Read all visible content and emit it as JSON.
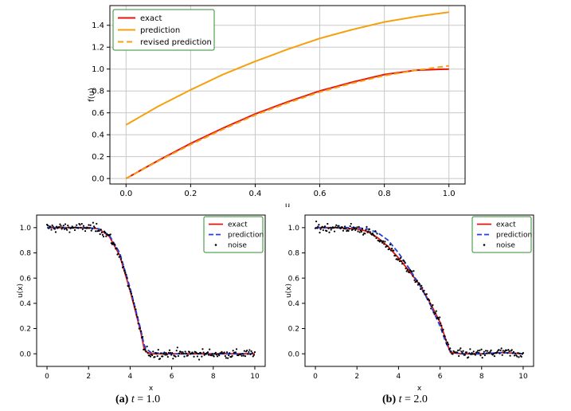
{
  "chart_data": [
    {
      "type": "line",
      "title": "",
      "xlabel": "u",
      "ylabel": "f(u)",
      "xlim": [
        -0.05,
        1.05
      ],
      "ylim": [
        -0.05,
        1.58
      ],
      "xticks": [
        "0.0",
        "0.2",
        "0.4",
        "0.6",
        "0.8",
        "1.0"
      ],
      "yticks": [
        "0.0",
        "0.2",
        "0.4",
        "0.6",
        "0.8",
        "1.0",
        "1.2",
        "1.4"
      ],
      "grid": true,
      "legend_position": "top-left",
      "x": [
        0.0,
        0.1,
        0.2,
        0.3,
        0.4,
        0.5,
        0.6,
        0.7,
        0.8,
        0.9,
        1.0
      ],
      "series": [
        {
          "name": "exact",
          "color": "#e8140e",
          "style": "solid",
          "values": [
            0.0,
            0.165,
            0.32,
            0.46,
            0.59,
            0.7,
            0.8,
            0.88,
            0.95,
            0.99,
            1.0
          ]
        },
        {
          "name": "prediction",
          "color": "#f5a00f",
          "style": "solid",
          "values": [
            0.49,
            0.66,
            0.81,
            0.95,
            1.07,
            1.18,
            1.28,
            1.36,
            1.43,
            1.48,
            1.52
          ]
        },
        {
          "name": "revised prediction",
          "color": "#f5a00f",
          "style": "dashed",
          "values": [
            0.0,
            0.16,
            0.31,
            0.45,
            0.58,
            0.69,
            0.79,
            0.87,
            0.94,
            0.99,
            1.03
          ]
        }
      ]
    },
    {
      "type": "line",
      "title": "",
      "xlabel": "x",
      "ylabel": "u(x)",
      "xlim": [
        -0.5,
        10.5
      ],
      "ylim": [
        -0.1,
        1.1
      ],
      "xticks": [
        "0",
        "2",
        "4",
        "6",
        "8",
        "10"
      ],
      "yticks": [
        "0.0",
        "0.2",
        "0.4",
        "0.6",
        "0.8",
        "1.0"
      ],
      "grid": false,
      "legend_position": "top-right",
      "x": [
        0,
        1,
        2,
        2.5,
        3,
        3.5,
        4,
        4.5,
        4.7,
        5,
        6,
        7,
        8,
        9,
        10
      ],
      "series": [
        {
          "name": "exact",
          "color": "#e8140e",
          "style": "solid",
          "values": [
            1.0,
            1.0,
            1.0,
            0.99,
            0.93,
            0.78,
            0.5,
            0.18,
            0.02,
            0.0,
            0.0,
            0.0,
            0.0,
            0.0,
            0.0
          ]
        },
        {
          "name": "prediction",
          "color": "#1f3fe0",
          "style": "dashed",
          "values": [
            1.0,
            1.0,
            1.0,
            0.99,
            0.94,
            0.8,
            0.52,
            0.2,
            0.05,
            0.01,
            0.0,
            0.0,
            0.0,
            0.0,
            0.0
          ]
        },
        {
          "name": "noise",
          "color": "#000000",
          "style": "markers",
          "values": [
            1.0,
            1.0,
            1.0,
            0.99,
            0.93,
            0.78,
            0.5,
            0.18,
            0.02,
            0.0,
            0.0,
            0.0,
            0.0,
            0.0,
            0.0
          ]
        }
      ]
    },
    {
      "type": "line",
      "title": "",
      "xlabel": "x",
      "ylabel": "u(x)",
      "xlim": [
        -0.5,
        10.5
      ],
      "ylim": [
        -0.1,
        1.1
      ],
      "xticks": [
        "0",
        "2",
        "4",
        "6",
        "8",
        "10"
      ],
      "yticks": [
        "0.0",
        "0.2",
        "0.4",
        "0.6",
        "0.8",
        "1.0"
      ],
      "grid": false,
      "legend_position": "top-right",
      "x": [
        0,
        1,
        2,
        2.5,
        3,
        3.5,
        4,
        4.5,
        5,
        5.5,
        6,
        6.3,
        6.5,
        7,
        8,
        9,
        10
      ],
      "series": [
        {
          "name": "exact",
          "color": "#e8140e",
          "style": "solid",
          "values": [
            1.0,
            1.0,
            0.99,
            0.97,
            0.92,
            0.85,
            0.76,
            0.66,
            0.55,
            0.41,
            0.25,
            0.1,
            0.01,
            0.0,
            0.0,
            0.01,
            0.0
          ]
        },
        {
          "name": "prediction",
          "color": "#1f3fe0",
          "style": "dashed",
          "values": [
            1.0,
            1.0,
            1.0,
            0.99,
            0.96,
            0.9,
            0.8,
            0.68,
            0.55,
            0.4,
            0.22,
            0.08,
            0.02,
            0.0,
            0.0,
            0.01,
            0.0
          ]
        },
        {
          "name": "noise",
          "color": "#000000",
          "style": "markers",
          "values": [
            1.0,
            1.0,
            0.99,
            0.97,
            0.92,
            0.85,
            0.76,
            0.66,
            0.55,
            0.41,
            0.25,
            0.1,
            0.01,
            0.0,
            0.0,
            0.01,
            0.0
          ]
        }
      ]
    }
  ],
  "captions": [
    {
      "label": "(a)",
      "var": "t",
      "rest": " = 1.0"
    },
    {
      "label": "(b)",
      "var": "t",
      "rest": " = 2.0"
    }
  ]
}
